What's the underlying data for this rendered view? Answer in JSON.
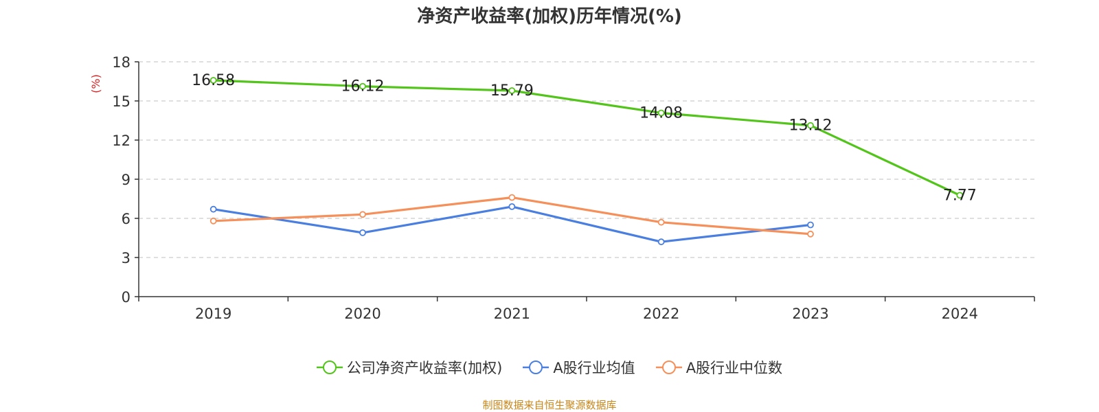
{
  "chart_data": {
    "type": "line",
    "title": "净资产收益率(加权)历年情况(%)",
    "ylabel": "(%)",
    "xlabel": "",
    "categories": [
      "2019",
      "2020",
      "2021",
      "2022",
      "2023",
      "2024"
    ],
    "ylim": [
      0,
      18
    ],
    "yticks": [
      0,
      3,
      6,
      9,
      12,
      15,
      18
    ],
    "grid": true,
    "legend_position": "bottom",
    "series": [
      {
        "name": "公司净资产收益率(加权)",
        "color": "#52c41a",
        "values": [
          16.58,
          16.12,
          15.79,
          14.08,
          13.12,
          7.77
        ],
        "labels": [
          "16.58",
          "16.12",
          "15.79",
          "14.08",
          "13.12",
          "7.77"
        ]
      },
      {
        "name": "A股行业均值",
        "color": "#4a7fe0",
        "values": [
          6.7,
          4.9,
          6.9,
          4.2,
          5.5,
          null
        ]
      },
      {
        "name": "A股行业中位数",
        "color": "#f5905a",
        "values": [
          5.8,
          6.3,
          7.6,
          5.7,
          4.8,
          null
        ]
      }
    ]
  },
  "source_note": "制图数据来自恒生聚源数据库"
}
